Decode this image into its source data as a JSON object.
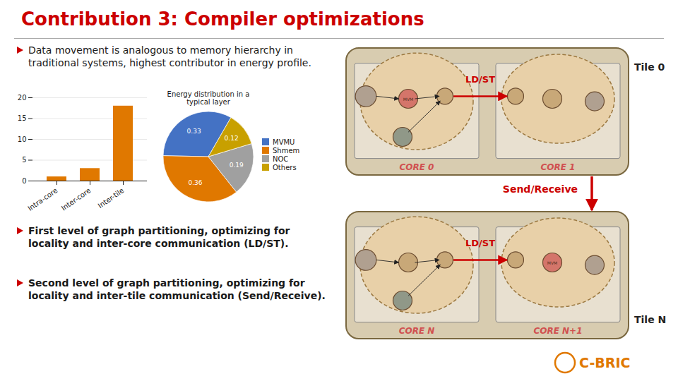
{
  "chart_data": [
    {
      "type": "slide",
      "title": "Contribution 3: Compiler optimizations",
      "color": "#cc0000",
      "annotations": [
        "Data movement is analogous to memory hierarchy in traditional systems, highest contributor in energy profile.",
        "First level of graph partitioning, optimizing for locality and inter-core communication (LD/ST).",
        "Second level of graph partitioning, optimizing for locality and inter-tile communication (Send/Receive)."
      ]
    },
    {
      "type": "bar",
      "categories": [
        "Intra-core",
        "Inter-core",
        "Inter-tile"
      ],
      "values": [
        1.0,
        3.0,
        18.0
      ],
      "color": "#e07800",
      "ylim": [
        0,
        20
      ],
      "yticks": [
        0,
        5,
        10,
        15,
        20
      ],
      "grid": true
    },
    {
      "type": "pie",
      "title": "Energy distribution in a typical layer",
      "categories": [
        "MVMU",
        "Shmem",
        "NOC",
        "Others"
      ],
      "values": [
        0.33,
        0.36,
        0.19,
        0.12
      ],
      "colors": [
        "#4472c4",
        "#e07800",
        "#a0a0a0",
        "#c8a000"
      ],
      "data_labels": true,
      "legend": "right"
    },
    {
      "type": "diagram",
      "annotations": [
        "Tile 0",
        "CORE 0",
        "CORE 1",
        "LD/ST",
        "MVM",
        "Tile N",
        "CORE N",
        "CORE N+1",
        "LD/ST",
        "MVM",
        "Send/Receive",
        "C-BRIC"
      ]
    }
  ]
}
